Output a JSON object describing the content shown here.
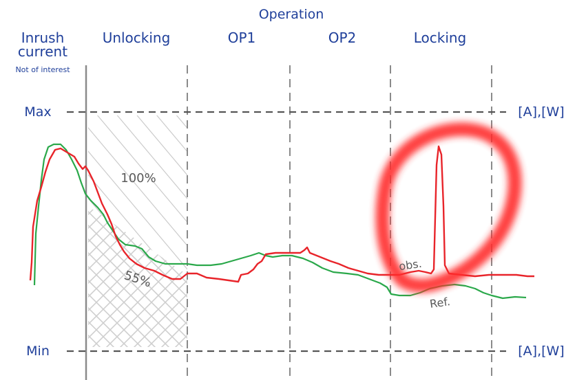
{
  "title": "Operation",
  "phases": {
    "inrush_line1": "Inrush",
    "inrush_line2": "current",
    "inrush_note": "Not of interest",
    "unlocking": "Unlocking",
    "op1": "OP1",
    "op2": "OP2",
    "locking": "Locking"
  },
  "levels": {
    "max": "Max",
    "min": "Min",
    "unit_top": "[A],[W]",
    "unit_bottom": "[A],[W]"
  },
  "bands": {
    "upper": "100%",
    "lower": "55%"
  },
  "curves": {
    "observed": "obs.",
    "reference": "Ref."
  },
  "colors": {
    "label_blue": "#1f3f9a",
    "observed": "#e8242a",
    "reference": "#2aa84a",
    "highlight": "#ff2a2a",
    "grid": "#555555",
    "hatch": "#c8c8c8"
  }
}
